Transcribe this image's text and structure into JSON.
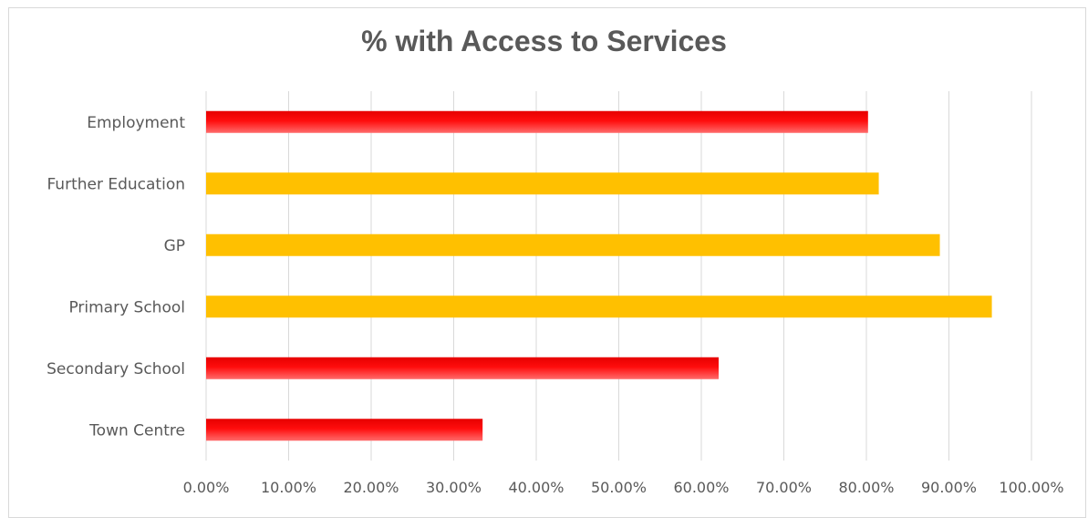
{
  "chart_data": {
    "type": "bar",
    "orientation": "horizontal",
    "title": "% with Access to Services",
    "categories": [
      "Employment",
      "Further Education",
      "GP",
      "Primary School",
      "Secondary School",
      "Town Centre"
    ],
    "values": [
      0.802,
      0.815,
      0.889,
      0.952,
      0.621,
      0.335
    ],
    "bar_colors": [
      "#ff0000",
      "#ffc000",
      "#ffc000",
      "#ffc000",
      "#ff0000",
      "#ff0000"
    ],
    "xlim": [
      0,
      1
    ],
    "xticks": [
      0,
      0.1,
      0.2,
      0.3,
      0.4,
      0.5,
      0.6,
      0.7,
      0.8,
      0.9,
      1.0
    ],
    "xtick_labels": [
      "0.00%",
      "10.00%",
      "20.00%",
      "30.00%",
      "40.00%",
      "50.00%",
      "60.00%",
      "70.00%",
      "80.00%",
      "90.00%",
      "100.00%"
    ],
    "grid": "vertical",
    "legend": "none",
    "colors": {
      "red": "#ff0000",
      "amber": "#ffc000",
      "gridline": "#d9d9d9",
      "text": "#595959"
    }
  }
}
